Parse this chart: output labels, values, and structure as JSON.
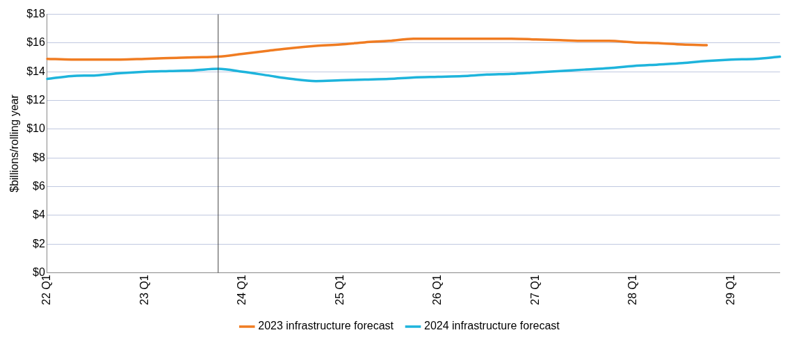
{
  "chart_data": {
    "type": "line",
    "ylabel": "$billions/rolling year",
    "categories": [
      "22 Q1",
      null,
      null,
      null,
      "23 Q1",
      null,
      null,
      null,
      "24 Q1",
      null,
      null,
      null,
      "25 Q1",
      null,
      null,
      null,
      "26 Q1",
      null,
      null,
      null,
      "27 Q1",
      null,
      null,
      null,
      "28 Q1",
      null,
      null,
      null,
      "29 Q1",
      null,
      null
    ],
    "ylim": [
      0,
      18
    ],
    "yticks": [
      {
        "value": 0,
        "label": "$0"
      },
      {
        "value": 2,
        "label": "$2"
      },
      {
        "value": 4,
        "label": "$4"
      },
      {
        "value": 6,
        "label": "$6"
      },
      {
        "value": 8,
        "label": "$8"
      },
      {
        "value": 10,
        "label": "$10"
      },
      {
        "value": 12,
        "label": "$12"
      },
      {
        "value": 14,
        "label": "$14"
      },
      {
        "value": 16,
        "label": "$16"
      },
      {
        "value": 18,
        "label": "$18"
      }
    ],
    "grid": "y",
    "legend": "bottom",
    "marker": "none",
    "line_style": "solid",
    "series": [
      {
        "name": "2023 infrastructure forecast",
        "color": "#f07c22",
        "values": [
          14.9,
          14.85,
          14.85,
          14.85,
          14.9,
          14.95,
          15.0,
          15.05,
          15.25,
          15.45,
          15.65,
          15.8,
          15.9,
          16.05,
          16.15,
          16.3,
          16.3,
          16.3,
          16.3,
          16.3,
          16.25,
          16.2,
          16.15,
          16.15,
          16.05,
          16.0,
          15.9,
          15.85,
          null,
          null,
          null
        ]
      },
      {
        "name": "2024 infrastructure forecast",
        "color": "#1eb4dc",
        "values": [
          13.5,
          13.7,
          13.75,
          13.9,
          14.0,
          14.05,
          14.1,
          14.2,
          14.0,
          13.75,
          13.5,
          13.35,
          13.4,
          13.45,
          13.5,
          13.6,
          13.65,
          13.7,
          13.8,
          13.85,
          13.95,
          14.05,
          14.15,
          14.25,
          14.4,
          14.5,
          14.6,
          14.75,
          14.85,
          14.9,
          15.05
        ]
      }
    ]
  }
}
